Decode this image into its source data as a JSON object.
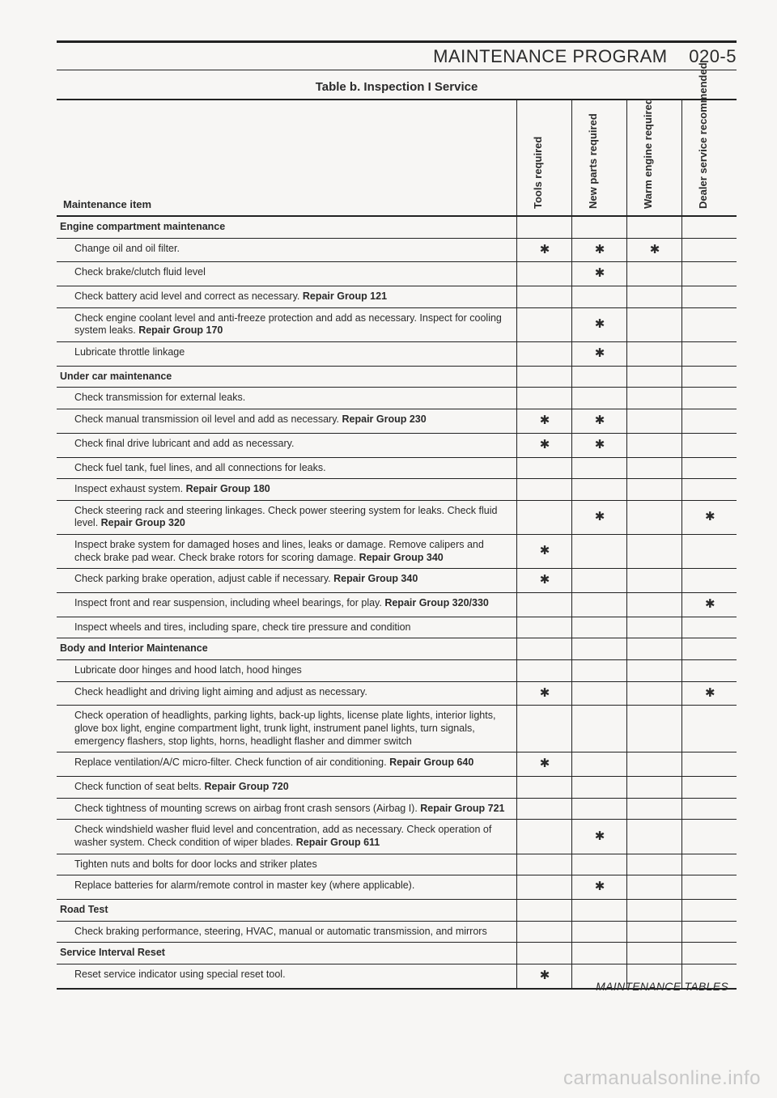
{
  "header": {
    "title": "MAINTENANCE PROGRAM",
    "section_number": "020-5"
  },
  "table_title": "Table b. Inspection I Service",
  "columns": {
    "item_header": "Maintenance item",
    "c1": "Tools required",
    "c2": "New parts required",
    "c3": "Warm engine required",
    "c4": "Dealer service recommended"
  },
  "mark_symbol": "✱",
  "rows": [
    {
      "type": "section",
      "text": "Engine compartment maintenance"
    },
    {
      "type": "item",
      "text": "Change oil and oil filter.",
      "marks": [
        true,
        true,
        true,
        false
      ]
    },
    {
      "type": "item",
      "text": "Check brake/clutch fluid level",
      "marks": [
        false,
        true,
        false,
        false
      ]
    },
    {
      "type": "item",
      "text": "Check battery acid level and correct as necessary. Repair Group 121",
      "marks": [
        false,
        false,
        false,
        false
      ]
    },
    {
      "type": "item",
      "text": "Check engine coolant level and anti-freeze protection and add as necessary. Inspect for cooling system leaks. Repair Group 170",
      "marks": [
        false,
        true,
        false,
        false
      ]
    },
    {
      "type": "item",
      "text": "Lubricate throttle linkage",
      "marks": [
        false,
        true,
        false,
        false
      ]
    },
    {
      "type": "section",
      "text": "Under car maintenance"
    },
    {
      "type": "item",
      "text": "Check transmission for external leaks.",
      "marks": [
        false,
        false,
        false,
        false
      ]
    },
    {
      "type": "item",
      "text": "Check manual transmission oil level and add as necessary. Repair Group 230",
      "marks": [
        true,
        true,
        false,
        false
      ]
    },
    {
      "type": "item",
      "text": "Check final drive lubricant and add as necessary.",
      "marks": [
        true,
        true,
        false,
        false
      ]
    },
    {
      "type": "item",
      "text": "Check fuel tank, fuel lines, and all connections for leaks.",
      "marks": [
        false,
        false,
        false,
        false
      ]
    },
    {
      "type": "item",
      "text": "Inspect exhaust system. Repair Group 180",
      "marks": [
        false,
        false,
        false,
        false
      ]
    },
    {
      "type": "item",
      "text": "Check steering rack and steering linkages. Check power steering system for leaks. Check fluid level. Repair Group 320",
      "marks": [
        false,
        true,
        false,
        true
      ]
    },
    {
      "type": "item",
      "text": "Inspect brake system for damaged hoses and lines, leaks or damage. Remove calipers and check brake pad wear. Check brake rotors for scoring damage. Repair Group 340",
      "marks": [
        true,
        false,
        false,
        false
      ]
    },
    {
      "type": "item",
      "text": "Check parking brake operation, adjust cable if necessary. Repair Group 340",
      "marks": [
        true,
        false,
        false,
        false
      ]
    },
    {
      "type": "item",
      "text": "Inspect front and rear suspension, including wheel bearings, for play. Repair Group 320/330",
      "marks": [
        false,
        false,
        false,
        true
      ]
    },
    {
      "type": "item",
      "text": "Inspect wheels and tires, including spare, check tire pressure and condition",
      "marks": [
        false,
        false,
        false,
        false
      ]
    },
    {
      "type": "section",
      "text": "Body and Interior Maintenance"
    },
    {
      "type": "item",
      "text": "Lubricate door hinges and hood latch, hood hinges",
      "marks": [
        false,
        false,
        false,
        false
      ]
    },
    {
      "type": "item",
      "text": "Check headlight and driving light aiming and adjust as necessary.",
      "marks": [
        true,
        false,
        false,
        true
      ]
    },
    {
      "type": "item",
      "text": "Check operation of headlights, parking lights, back-up lights, license plate lights, interior lights, glove box light, engine compartment light, trunk light, instrument panel lights, turn signals, emergency flashers, stop lights, horns, headlight flasher and dimmer switch",
      "marks": [
        false,
        false,
        false,
        false
      ]
    },
    {
      "type": "item",
      "text": "Replace ventilation/A/C micro-filter. Check function of air conditioning. Repair Group 640",
      "marks": [
        true,
        false,
        false,
        false
      ]
    },
    {
      "type": "item",
      "text": "Check function of seat belts. Repair Group 720",
      "marks": [
        false,
        false,
        false,
        false
      ]
    },
    {
      "type": "item",
      "text": "Check tightness of mounting screws on airbag front crash sensors (Airbag I). Repair Group 721",
      "marks": [
        false,
        false,
        false,
        false
      ]
    },
    {
      "type": "item",
      "text": "Check windshield washer fluid level and concentration, add as necessary. Check operation of washer system. Check condition of wiper blades. Repair Group 611",
      "marks": [
        false,
        true,
        false,
        false
      ]
    },
    {
      "type": "item",
      "text": "Tighten nuts and bolts for door locks and striker plates",
      "marks": [
        false,
        false,
        false,
        false
      ]
    },
    {
      "type": "item",
      "text": "Replace batteries for alarm/remote control in master key (where applicable).",
      "marks": [
        false,
        true,
        false,
        false
      ]
    },
    {
      "type": "section",
      "text": "Road Test"
    },
    {
      "type": "item",
      "text": "Check braking performance, steering, HVAC, manual or automatic transmission, and mirrors",
      "marks": [
        false,
        false,
        false,
        false
      ]
    },
    {
      "type": "section",
      "text": "Service Interval Reset"
    },
    {
      "type": "item",
      "text": "Reset service indicator using special reset tool.",
      "marks": [
        true,
        false,
        false,
        false
      ]
    }
  ],
  "footer_text": "MAINTENANCE TABLES",
  "watermark": "carmanualsonline.info"
}
